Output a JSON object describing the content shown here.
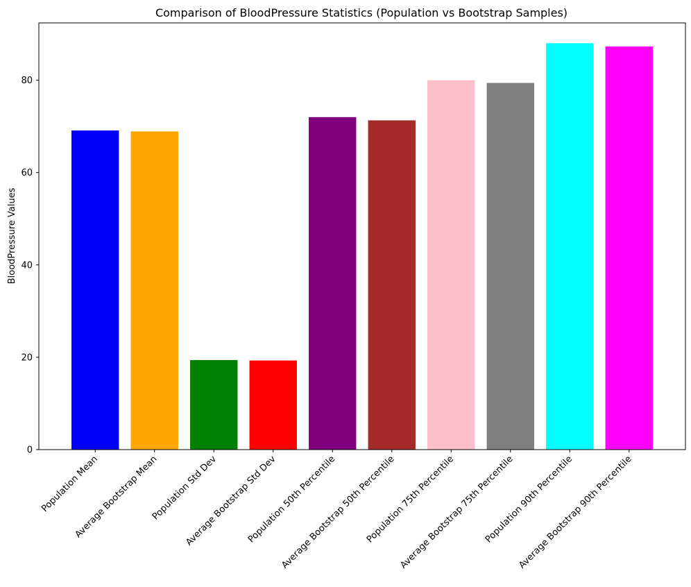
{
  "chart_data": {
    "type": "bar",
    "title": "Comparison of BloodPressure Statistics (Population vs Bootstrap Samples)",
    "xlabel": "",
    "ylabel": "BloodPressure Values",
    "categories": [
      "Population Mean",
      "Average Bootstrap Mean",
      "Population Std Dev",
      "Average Bootstrap Std Dev",
      "Population 50th Percentile",
      "Average Bootstrap 50th Percentile",
      "Population 75th Percentile",
      "Average Bootstrap 75th Percentile",
      "Population 90th Percentile",
      "Average Bootstrap 90th Percentile"
    ],
    "values": [
      69.1,
      68.9,
      19.4,
      19.3,
      72.0,
      71.3,
      80.0,
      79.4,
      88.0,
      87.3
    ],
    "colors": [
      "#0000ff",
      "#ffa500",
      "#008000",
      "#ff0000",
      "#800080",
      "#a52a2a",
      "#ffc0cb",
      "#808080",
      "#00ffff",
      "#ff00ff"
    ],
    "ylim": [
      0,
      92.4
    ],
    "yticks": [
      0,
      20,
      40,
      60,
      80
    ],
    "grid": false,
    "legend": "none"
  }
}
